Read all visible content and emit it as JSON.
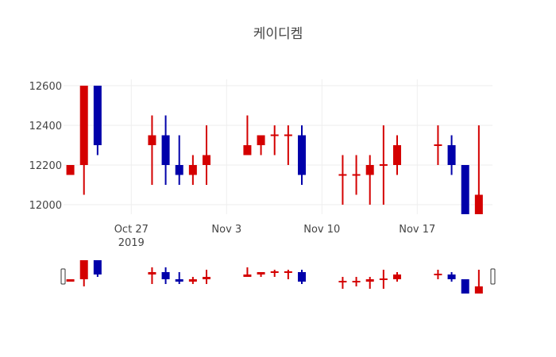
{
  "chart_data": {
    "type": "candlestick",
    "title": "케이디켐",
    "xlabel": "",
    "ylabel": "",
    "ylim": [
      11952,
      12632
    ],
    "grid": true,
    "legend": false,
    "y_ticks": [
      12000,
      12200,
      12400,
      12600
    ],
    "x_ticks": [
      {
        "date": "2019-10-27",
        "label": "Oct 27",
        "sub": "2019"
      },
      {
        "date": "2019-11-03",
        "label": "Nov 3",
        "sub": ""
      },
      {
        "date": "2019-11-10",
        "label": "Nov 10",
        "sub": ""
      },
      {
        "date": "2019-11-17",
        "label": "Nov 17",
        "sub": ""
      }
    ],
    "increasing_color": "#d40000",
    "decreasing_color": "#0000aa",
    "range_slider": true,
    "candles": [
      {
        "date": "2019-10-22",
        "open": 12150,
        "high": 12200,
        "low": 12150,
        "close": 12200
      },
      {
        "date": "2019-10-23",
        "open": 12200,
        "high": 12600,
        "low": 12050,
        "close": 12600
      },
      {
        "date": "2019-10-24",
        "open": 12600,
        "high": 12600,
        "low": 12250,
        "close": 12300
      },
      {
        "date": "2019-10-28",
        "open": 12300,
        "high": 12450,
        "low": 12100,
        "close": 12350
      },
      {
        "date": "2019-10-29",
        "open": 12350,
        "high": 12450,
        "low": 12100,
        "close": 12200
      },
      {
        "date": "2019-10-30",
        "open": 12200,
        "high": 12350,
        "low": 12100,
        "close": 12150
      },
      {
        "date": "2019-10-31",
        "open": 12150,
        "high": 12250,
        "low": 12100,
        "close": 12200
      },
      {
        "date": "2019-11-01",
        "open": 12200,
        "high": 12400,
        "low": 12100,
        "close": 12250
      },
      {
        "date": "2019-11-04",
        "open": 12250,
        "high": 12450,
        "low": 12250,
        "close": 12300
      },
      {
        "date": "2019-11-05",
        "open": 12300,
        "high": 12350,
        "low": 12250,
        "close": 12350
      },
      {
        "date": "2019-11-06",
        "open": 12350,
        "high": 12400,
        "low": 12250,
        "close": 12350
      },
      {
        "date": "2019-11-07",
        "open": 12350,
        "high": 12400,
        "low": 12200,
        "close": 12350
      },
      {
        "date": "2019-11-08",
        "open": 12350,
        "high": 12400,
        "low": 12100,
        "close": 12150
      },
      {
        "date": "2019-11-11",
        "open": 12150,
        "high": 12250,
        "low": 12000,
        "close": 12150
      },
      {
        "date": "2019-11-12",
        "open": 12150,
        "high": 12250,
        "low": 12050,
        "close": 12150
      },
      {
        "date": "2019-11-13",
        "open": 12150,
        "high": 12250,
        "low": 12000,
        "close": 12200
      },
      {
        "date": "2019-11-14",
        "open": 12200,
        "high": 12400,
        "low": 12000,
        "close": 12200
      },
      {
        "date": "2019-11-15",
        "open": 12200,
        "high": 12350,
        "low": 12150,
        "close": 12300
      },
      {
        "date": "2019-11-18",
        "open": 12300,
        "high": 12400,
        "low": 12200,
        "close": 12300
      },
      {
        "date": "2019-11-19",
        "open": 12300,
        "high": 12350,
        "low": 12150,
        "close": 12200
      },
      {
        "date": "2019-11-20",
        "open": 12200,
        "high": 12200,
        "low": 11900,
        "close": 11900
      },
      {
        "date": "2019-11-21",
        "open": 11900,
        "high": 12400,
        "low": 11900,
        "close": 12050
      }
    ]
  }
}
